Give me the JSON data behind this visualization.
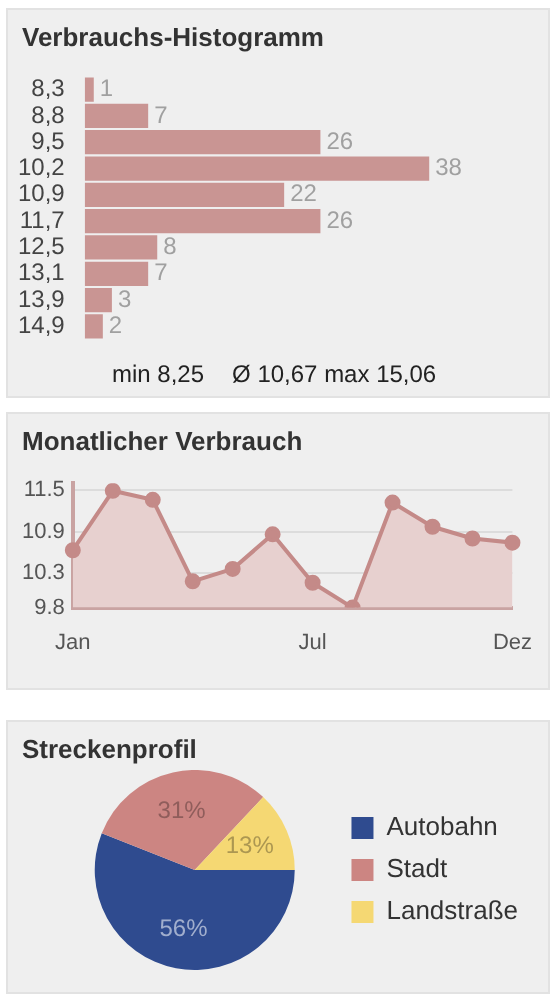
{
  "chart_data": [
    {
      "type": "bar",
      "orientation": "horizontal",
      "title": "Verbrauchs-Histogramm",
      "categories": [
        "8,3",
        "8,8",
        "9,5",
        "10,2",
        "10,9",
        "11,7",
        "12,5",
        "13,1",
        "13,9",
        "14,9"
      ],
      "values": [
        1,
        7,
        26,
        38,
        22,
        26,
        8,
        7,
        3,
        2
      ],
      "color": "#c99593",
      "data_labels": true,
      "annotations": [
        "min 8,25",
        "Ø 10,67 max 15,06"
      ]
    },
    {
      "type": "area",
      "title": "Monatlicher Verbrauch",
      "categories": [
        "Jan",
        null,
        null,
        null,
        null,
        null,
        "Jul",
        null,
        null,
        null,
        null,
        "Dez"
      ],
      "values": [
        10.63,
        11.49,
        11.36,
        10.18,
        10.36,
        10.86,
        10.16,
        9.8,
        11.32,
        10.97,
        10.8,
        10.74
      ],
      "color": "#c48a88",
      "ylim": [
        9.8,
        11.6
      ],
      "yticks": [
        9.8,
        10.3,
        10.9,
        11.5
      ],
      "grid": "y",
      "marker": "circle"
    },
    {
      "type": "pie",
      "title": "Streckenprofil",
      "categories": [
        "Autobahn",
        "Stadt",
        "Landstraße"
      ],
      "values": [
        56,
        31,
        13
      ],
      "colors": [
        "#2f4b8f",
        "#cc8582",
        "#f5d873"
      ],
      "value_labels": [
        "56%",
        "31%",
        "13%"
      ],
      "legend": "right"
    }
  ]
}
